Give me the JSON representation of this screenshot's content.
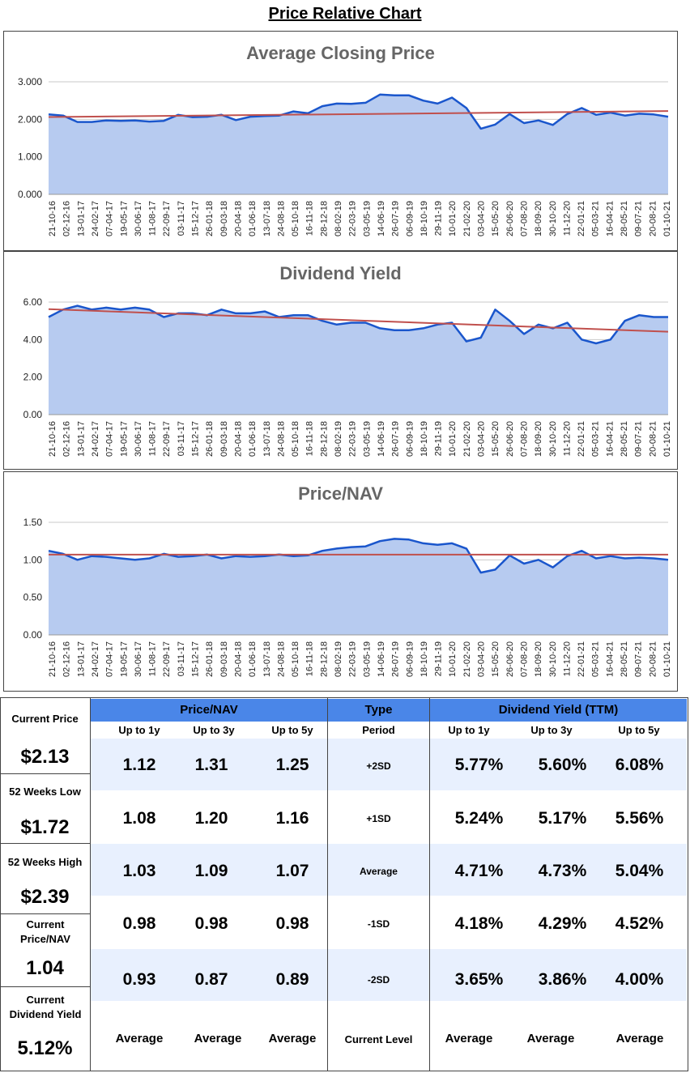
{
  "page_title": "Price Relative Chart",
  "colors": {
    "area": "#b7cbf0",
    "line": "#1a56cc",
    "trend": "#c0504d",
    "grid": "#c9c9c9",
    "header": "#4a86e8",
    "band": "#e8f0fe"
  },
  "x_ticks": [
    "21-10-16",
    "02-12-16",
    "13-01-17",
    "24-02-17",
    "07-04-17",
    "19-05-17",
    "30-06-17",
    "11-08-17",
    "22-09-17",
    "03-11-17",
    "15-12-17",
    "26-01-18",
    "09-03-18",
    "20-04-18",
    "01-06-18",
    "13-07-18",
    "24-08-18",
    "05-10-18",
    "16-11-18",
    "28-12-18",
    "08-02-19",
    "22-03-19",
    "03-05-19",
    "14-06-19",
    "26-07-19",
    "06-09-19",
    "18-10-19",
    "29-11-19",
    "10-01-20",
    "21-02-20",
    "03-04-20",
    "15-05-20",
    "26-06-20",
    "07-08-20",
    "18-09-20",
    "30-10-20",
    "11-12-20",
    "22-01-21",
    "05-03-21",
    "16-04-21",
    "28-05-21",
    "09-07-21",
    "20-08-21",
    "01-10-21"
  ],
  "chart_data": [
    {
      "type": "area",
      "title": "Average Closing Price",
      "ylim": [
        0,
        3
      ],
      "y_ticks": [
        "0.000",
        "1.000",
        "2.000",
        "3.000"
      ],
      "y_tick_values": [
        0,
        1,
        2,
        3
      ],
      "values": [
        2.13,
        2.1,
        1.93,
        1.93,
        1.97,
        1.96,
        1.97,
        1.94,
        1.96,
        2.12,
        2.06,
        2.07,
        2.12,
        1.98,
        2.07,
        2.09,
        2.1,
        2.21,
        2.16,
        2.35,
        2.42,
        2.41,
        2.44,
        2.66,
        2.64,
        2.64,
        2.5,
        2.42,
        2.58,
        2.3,
        1.75,
        1.86,
        2.14,
        1.9,
        1.97,
        1.85,
        2.14,
        2.3,
        2.12,
        2.18,
        2.1,
        2.15,
        2.13,
        2.07
      ],
      "trend": [
        2.06,
        2.22
      ]
    },
    {
      "type": "area",
      "title": "Dividend Yield",
      "ylim": [
        0,
        6
      ],
      "y_ticks": [
        "0.00",
        "2.00",
        "4.00",
        "6.00"
      ],
      "y_tick_values": [
        0,
        2,
        4,
        6
      ],
      "values": [
        5.2,
        5.6,
        5.8,
        5.6,
        5.7,
        5.6,
        5.7,
        5.6,
        5.2,
        5.4,
        5.4,
        5.3,
        5.6,
        5.4,
        5.4,
        5.5,
        5.2,
        5.3,
        5.3,
        5.0,
        4.8,
        4.9,
        4.9,
        4.6,
        4.5,
        4.5,
        4.6,
        4.8,
        4.9,
        3.9,
        4.1,
        5.6,
        5.0,
        4.3,
        4.8,
        4.6,
        4.9,
        4.0,
        3.8,
        4.0,
        5.0,
        5.3,
        5.2,
        5.2
      ],
      "trend": [
        5.62,
        4.42
      ]
    },
    {
      "type": "area",
      "title": "Price/NAV",
      "ylim": [
        0,
        1.5
      ],
      "y_ticks": [
        "0.00",
        "0.50",
        "1.00",
        "1.50"
      ],
      "y_tick_values": [
        0,
        0.5,
        1,
        1.5
      ],
      "values": [
        1.12,
        1.08,
        1.0,
        1.05,
        1.04,
        1.02,
        1.0,
        1.02,
        1.08,
        1.04,
        1.05,
        1.07,
        1.02,
        1.05,
        1.04,
        1.05,
        1.07,
        1.05,
        1.06,
        1.12,
        1.15,
        1.17,
        1.18,
        1.25,
        1.28,
        1.27,
        1.22,
        1.2,
        1.22,
        1.15,
        0.83,
        0.87,
        1.06,
        0.95,
        1.0,
        0.9,
        1.05,
        1.12,
        1.02,
        1.05,
        1.02,
        1.03,
        1.02,
        1.0
      ],
      "trend": [
        1.07,
        1.07
      ]
    }
  ],
  "summary": {
    "stats": [
      {
        "label": "Current Price",
        "value": "$2.13"
      },
      {
        "label": "52 Weeks Low",
        "value": "$1.72"
      },
      {
        "label": "52 Weeks High",
        "value": "$2.39"
      },
      {
        "label": "Current Price/NAV",
        "value": "1.04"
      },
      {
        "label": "Current Dividend Yield",
        "value": "5.12%"
      }
    ],
    "pnav_header": "Price/NAV",
    "type_header": "Type",
    "dy_header": "Dividend Yield (TTM)",
    "sub_headers": [
      "Up to 1y",
      "Up to 3y",
      "Up to 5y",
      "Period",
      "Up to 1y",
      "Up to 3y",
      "Up to 5y"
    ],
    "rows": [
      {
        "pnav": [
          "1.12",
          "1.31",
          "1.25"
        ],
        "type": "+2SD",
        "dy": [
          "5.77%",
          "5.60%",
          "6.08%"
        ]
      },
      {
        "pnav": [
          "1.08",
          "1.20",
          "1.16"
        ],
        "type": "+1SD",
        "dy": [
          "5.24%",
          "5.17%",
          "5.56%"
        ]
      },
      {
        "pnav": [
          "1.03",
          "1.09",
          "1.07"
        ],
        "type": "Average",
        "dy": [
          "4.71%",
          "4.73%",
          "5.04%"
        ]
      },
      {
        "pnav": [
          "0.98",
          "0.98",
          "0.98"
        ],
        "type": "-1SD",
        "dy": [
          "4.18%",
          "4.29%",
          "4.52%"
        ]
      },
      {
        "pnav": [
          "0.93",
          "0.87",
          "0.89"
        ],
        "type": "-2SD",
        "dy": [
          "3.65%",
          "3.86%",
          "4.00%"
        ]
      }
    ],
    "footer": [
      "Average",
      "Average",
      "Average",
      "Current Level",
      "Average",
      "Average",
      "Average"
    ]
  }
}
